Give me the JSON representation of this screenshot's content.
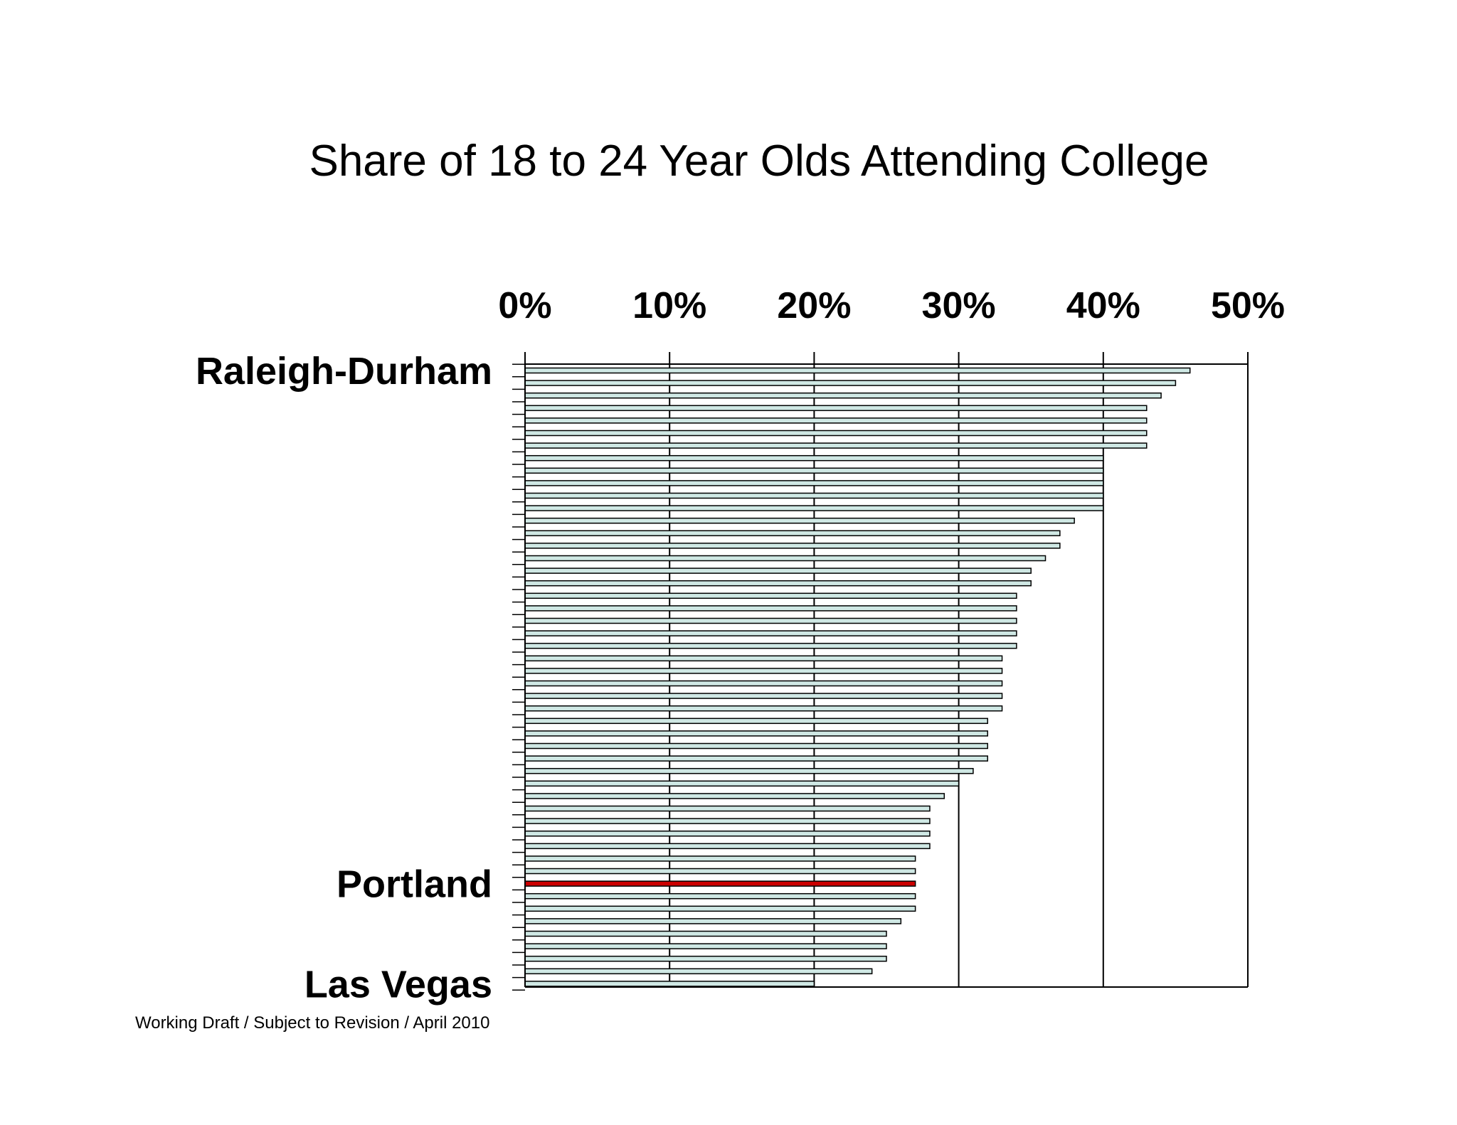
{
  "chart_data": {
    "type": "bar",
    "orientation": "horizontal",
    "title": "Share of 18 to 24 Year Olds Attending College",
    "xlim": [
      0,
      50
    ],
    "x_ticks": [
      "0%",
      "10%",
      "20%",
      "30%",
      "40%",
      "50%"
    ],
    "x_tick_values": [
      0,
      10,
      20,
      30,
      40,
      50
    ],
    "axis_position": "top",
    "grid": true,
    "bar_color": "#cfe8e4",
    "highlight_color": "#cc0000",
    "highlight_index": 41,
    "labeled_categories": [
      {
        "index": 0,
        "label": "Raleigh-Durham"
      },
      {
        "index": 41,
        "label": "Portland"
      },
      {
        "index": 49,
        "label": "Las Vegas"
      }
    ],
    "values": [
      46,
      45,
      44,
      43,
      43,
      43,
      43,
      40,
      40,
      40,
      40,
      40,
      38,
      37,
      37,
      36,
      35,
      35,
      34,
      34,
      34,
      34,
      34,
      33,
      33,
      33,
      33,
      33,
      32,
      32,
      32,
      32,
      31,
      30,
      29,
      28,
      28,
      28,
      28,
      27,
      27,
      27,
      27,
      27,
      26,
      25,
      25,
      25,
      24,
      20
    ]
  },
  "footnote": "Working Draft / Subject to Revision / April 2010"
}
